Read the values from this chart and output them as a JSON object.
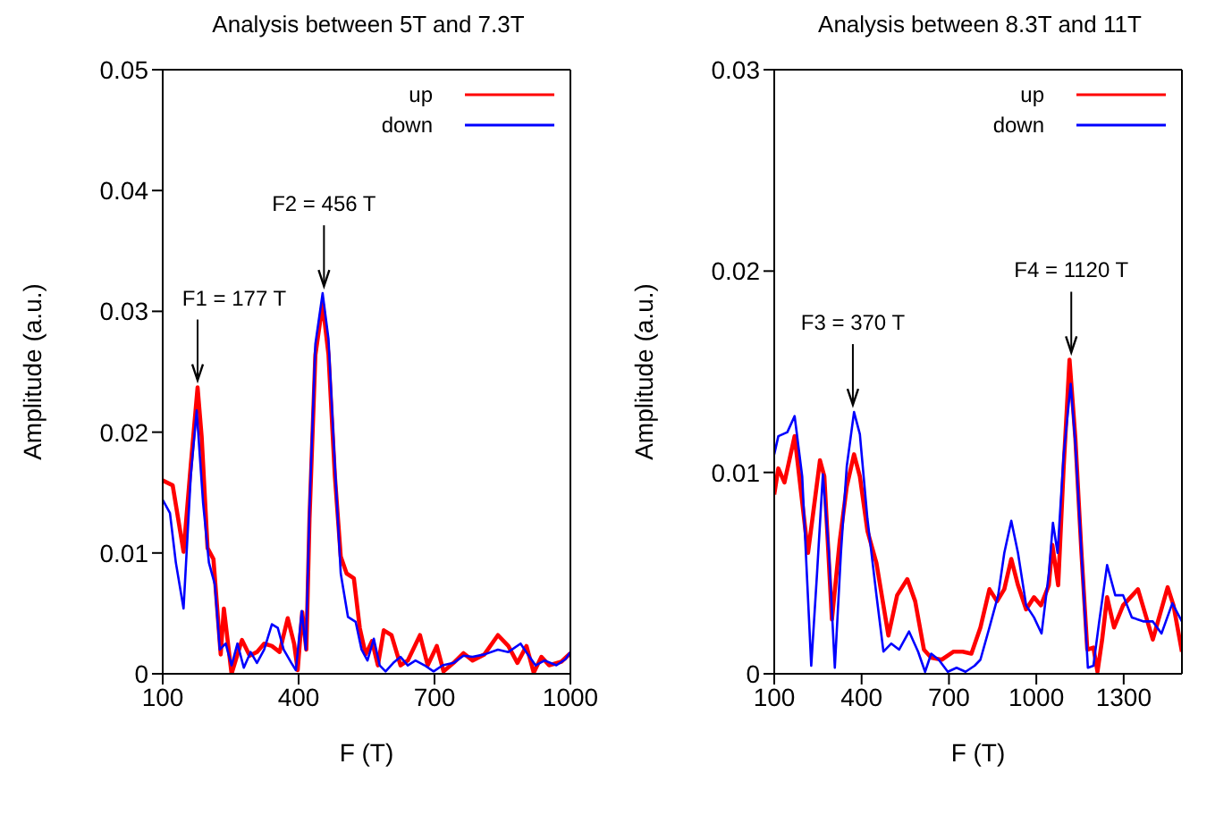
{
  "chart_data": [
    {
      "type": "line",
      "title": "Analysis between 5T and 7.3T",
      "xlabel": "F (T)",
      "ylabel": "Amplitude (a.u.)",
      "xlim": [
        100,
        1000
      ],
      "xticks": [
        100,
        400,
        700,
        1000
      ],
      "ylim": [
        0,
        0.05
      ],
      "yticks": [
        0,
        0.01,
        0.02,
        0.03,
        0.04,
        0.05
      ],
      "legend": "top right",
      "marker": "none",
      "line_style": "solid",
      "annotations": [
        {
          "text": "F1 = 177 T",
          "x": 177,
          "y": 0.0237
        },
        {
          "text": "F2 = 456 T",
          "x": 456,
          "y": 0.0315
        }
      ],
      "series": [
        {
          "name": "up",
          "color": "#ff0000",
          "x": [
            100,
            122,
            146,
            162,
            177,
            186,
            199,
            212,
            228,
            235,
            252,
            265,
            275,
            292,
            308,
            324,
            341,
            358,
            376,
            390,
            398,
            408,
            417,
            424,
            437,
            453,
            466,
            480,
            493,
            506,
            522,
            535,
            548,
            562,
            575,
            588,
            605,
            625,
            641,
            668,
            685,
            705,
            720,
            742,
            764,
            784,
            810,
            840,
            863,
            883,
            903,
            919,
            936,
            953,
            980,
            1000
          ],
          "values": [
            0.016,
            0.0156,
            0.0101,
            0.0173,
            0.0237,
            0.0196,
            0.0104,
            0.0095,
            0.0016,
            0.0054,
            0.0,
            0.0016,
            0.0028,
            0.0015,
            0.0018,
            0.0025,
            0.0023,
            0.0018,
            0.0046,
            0.0025,
            0.0003,
            0.0051,
            0.002,
            0.0128,
            0.0264,
            0.0306,
            0.0264,
            0.0164,
            0.0097,
            0.0083,
            0.0079,
            0.0038,
            0.0016,
            0.0027,
            0.0007,
            0.0036,
            0.0032,
            0.0007,
            0.0011,
            0.0032,
            0.0007,
            0.0023,
            0.0002,
            0.0009,
            0.0017,
            0.0011,
            0.0016,
            0.0032,
            0.0023,
            0.0009,
            0.0023,
            0.0001,
            0.0014,
            0.0007,
            0.001,
            0.0017
          ]
        },
        {
          "name": "down",
          "color": "#0000ff",
          "x": [
            100,
            116,
            129,
            146,
            162,
            175,
            189,
            202,
            215,
            226,
            239,
            252,
            265,
            279,
            294,
            308,
            324,
            341,
            354,
            367,
            384,
            394,
            407,
            416,
            424,
            437,
            453,
            466,
            480,
            493,
            509,
            526,
            539,
            552,
            566,
            579,
            592,
            609,
            625,
            641,
            658,
            678,
            698,
            718,
            742,
            764,
            784,
            810,
            840,
            863,
            890,
            906,
            923,
            943,
            969,
            989,
            1000
          ],
          "values": [
            0.0144,
            0.0133,
            0.0092,
            0.0054,
            0.0164,
            0.0218,
            0.0142,
            0.0092,
            0.0074,
            0.002,
            0.0025,
            0.0007,
            0.0025,
            0.0005,
            0.0018,
            0.0009,
            0.002,
            0.0041,
            0.0038,
            0.002,
            0.0009,
            0.0003,
            0.0052,
            0.002,
            0.0137,
            0.0273,
            0.0315,
            0.0277,
            0.0173,
            0.0083,
            0.0047,
            0.0043,
            0.002,
            0.0011,
            0.0029,
            0.0007,
            0.0002,
            0.0009,
            0.0014,
            0.0007,
            0.0011,
            0.0007,
            0.0002,
            0.0007,
            0.0009,
            0.0015,
            0.0014,
            0.0016,
            0.002,
            0.0018,
            0.0025,
            0.0016,
            0.0007,
            0.0011,
            0.0007,
            0.0012,
            0.0018
          ]
        }
      ]
    },
    {
      "type": "line",
      "title": "Analysis between 8.3T and 11T",
      "xlabel": "F (T)",
      "ylabel": "Amplitude (a.u.)",
      "xlim": [
        100,
        1500
      ],
      "xticks": [
        100,
        400,
        700,
        1000,
        1300
      ],
      "ylim": [
        0,
        0.03
      ],
      "yticks": [
        0,
        0.01,
        0.02,
        0.03
      ],
      "legend": "top right",
      "marker": "none",
      "line_style": "solid",
      "annotations": [
        {
          "text": "F3 = 370 T",
          "x": 370,
          "y": 0.013
        },
        {
          "text": "F4 = 1120 T",
          "x": 1120,
          "y": 0.0156
        }
      ],
      "series": [
        {
          "name": "up",
          "color": "#ff0000",
          "x": [
            100,
            114,
            135,
            170,
            216,
            257,
            272,
            298,
            325,
            349,
            374,
            394,
            420,
            451,
            492,
            522,
            557,
            584,
            614,
            639,
            675,
            716,
            747,
            777,
            808,
            839,
            865,
            890,
            914,
            937,
            965,
            992,
            1016,
            1043,
            1055,
            1075,
            1094,
            1114,
            1134,
            1155,
            1175,
            1196,
            1210,
            1226,
            1243,
            1267,
            1298,
            1349,
            1400,
            1451,
            1471,
            1500
          ],
          "values": [
            0.0089,
            0.0102,
            0.0095,
            0.0118,
            0.006,
            0.0106,
            0.0098,
            0.0027,
            0.0066,
            0.0093,
            0.0109,
            0.0098,
            0.0071,
            0.0055,
            0.0019,
            0.0039,
            0.0047,
            0.0036,
            0.0012,
            0.0008,
            0.0007,
            0.0011,
            0.0011,
            0.001,
            0.0023,
            0.0042,
            0.0036,
            0.0042,
            0.0057,
            0.0044,
            0.0032,
            0.0038,
            0.0034,
            0.0044,
            0.0064,
            0.0044,
            0.0103,
            0.0156,
            0.0117,
            0.006,
            0.0012,
            0.0013,
            0.0001,
            0.0017,
            0.0038,
            0.0023,
            0.0034,
            0.0042,
            0.0017,
            0.0043,
            0.0034,
            0.0011
          ]
        },
        {
          "name": "down",
          "color": "#0000ff",
          "x": [
            100,
            114,
            145,
            170,
            196,
            227,
            247,
            267,
            288,
            308,
            329,
            349,
            374,
            394,
            420,
            451,
            475,
            502,
            529,
            563,
            594,
            618,
            639,
            665,
            696,
            726,
            757,
            788,
            808,
            839,
            869,
            890,
            914,
            937,
            965,
            992,
            1018,
            1043,
            1057,
            1073,
            1094,
            1118,
            1134,
            1155,
            1177,
            1196,
            1216,
            1243,
            1271,
            1298,
            1328,
            1369,
            1400,
            1430,
            1467,
            1500
          ],
          "values": [
            0.0109,
            0.0118,
            0.012,
            0.0128,
            0.0098,
            0.0004,
            0.005,
            0.0099,
            0.006,
            0.0003,
            0.006,
            0.0103,
            0.013,
            0.0119,
            0.0077,
            0.0039,
            0.0011,
            0.0015,
            0.0012,
            0.0021,
            0.0011,
            0.0001,
            0.001,
            0.0007,
            0.0001,
            0.0003,
            0.0001,
            0.0004,
            0.0007,
            0.0023,
            0.0039,
            0.006,
            0.0076,
            0.006,
            0.0034,
            0.0028,
            0.002,
            0.005,
            0.0075,
            0.006,
            0.0109,
            0.0144,
            0.0114,
            0.006,
            0.0003,
            0.0004,
            0.0026,
            0.0054,
            0.0039,
            0.0039,
            0.0028,
            0.0026,
            0.0026,
            0.002,
            0.0035,
            0.0026
          ]
        }
      ]
    }
  ]
}
